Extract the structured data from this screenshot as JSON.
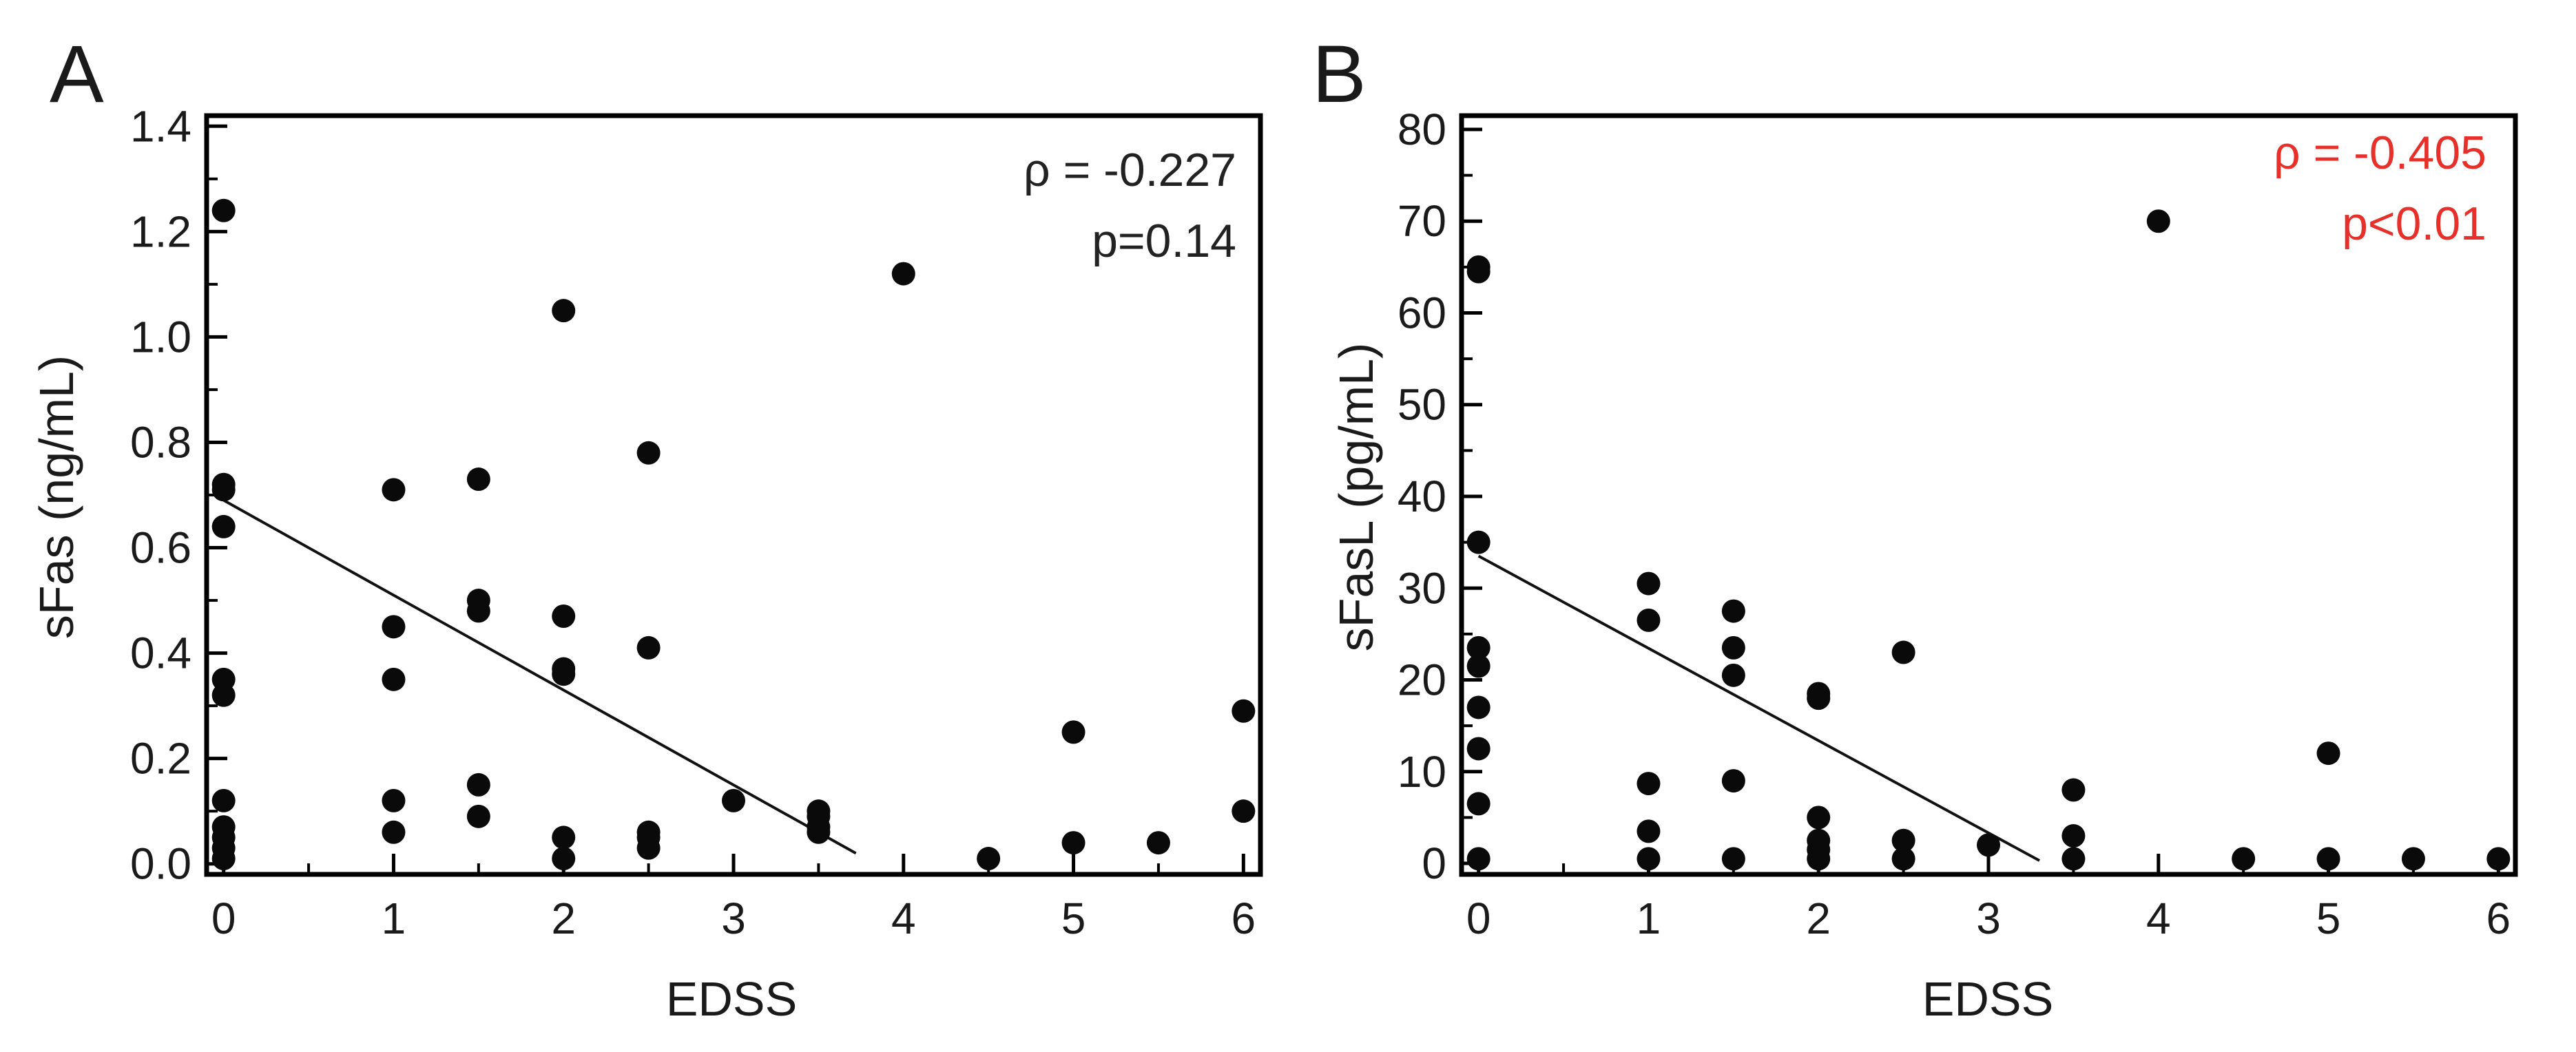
{
  "chart_data": [
    {
      "type": "scatter",
      "panel": "A",
      "xlabel": "EDSS",
      "ylabel": "sFas (ng/mL)",
      "xlim": [
        -0.1,
        6.1
      ],
      "ylim": [
        -0.02,
        1.42
      ],
      "xticks": [
        "0",
        "1",
        "2",
        "3",
        "4",
        "5",
        "6"
      ],
      "yticks": [
        "0.0",
        "0.2",
        "0.4",
        "0.6",
        "0.8",
        "1.0",
        "1.2",
        "1.4"
      ],
      "stats": {
        "rho": "ρ = -0.227",
        "p": "p=0.14",
        "color": "#222222"
      },
      "trendline": {
        "x": [
          0,
          3.72
        ],
        "y": [
          0.69,
          0.02
        ]
      },
      "points": [
        [
          0,
          1.24
        ],
        [
          0,
          0.72
        ],
        [
          0,
          0.71
        ],
        [
          0,
          0.64
        ],
        [
          0,
          0.35
        ],
        [
          0,
          0.32
        ],
        [
          0,
          0.12
        ],
        [
          0,
          0.07
        ],
        [
          0,
          0.05
        ],
        [
          0,
          0.03
        ],
        [
          0,
          0.01
        ],
        [
          1,
          0.71
        ],
        [
          1,
          0.45
        ],
        [
          1,
          0.35
        ],
        [
          1,
          0.12
        ],
        [
          1,
          0.06
        ],
        [
          1.5,
          0.73
        ],
        [
          1.5,
          0.5
        ],
        [
          1.5,
          0.48
        ],
        [
          1.5,
          0.15
        ],
        [
          1.5,
          0.09
        ],
        [
          2,
          1.05
        ],
        [
          2,
          0.47
        ],
        [
          2,
          0.37
        ],
        [
          2,
          0.36
        ],
        [
          2,
          0.05
        ],
        [
          2,
          0.01
        ],
        [
          2.5,
          0.78
        ],
        [
          2.5,
          0.41
        ],
        [
          2.5,
          0.06
        ],
        [
          2.5,
          0.05
        ],
        [
          2.5,
          0.03
        ],
        [
          3,
          0.12
        ],
        [
          3.5,
          0.1
        ],
        [
          3.5,
          0.09
        ],
        [
          3.5,
          0.07
        ],
        [
          3.5,
          0.06
        ],
        [
          4,
          1.12
        ],
        [
          4.5,
          0.01
        ],
        [
          5,
          0.25
        ],
        [
          5,
          0.04
        ],
        [
          5.5,
          0.04
        ],
        [
          6,
          0.29
        ],
        [
          6,
          0.1
        ]
      ]
    },
    {
      "type": "scatter",
      "panel": "B",
      "xlabel": "EDSS",
      "ylabel": "sFasL (pg/mL)",
      "xlim": [
        -0.1,
        6.1
      ],
      "ylim": [
        -1.2,
        81.5
      ],
      "xticks": [
        "0",
        "1",
        "2",
        "3",
        "4",
        "5",
        "6"
      ],
      "yticks": [
        "0",
        "10",
        "20",
        "30",
        "40",
        "50",
        "60",
        "70",
        "80"
      ],
      "stats": {
        "rho": "ρ = -0.405",
        "p": "p<0.01",
        "color": "#e8302a"
      },
      "trendline": {
        "x": [
          0,
          3.3
        ],
        "y": [
          33.5,
          0.3
        ]
      },
      "points": [
        [
          0,
          65
        ],
        [
          0,
          64.5
        ],
        [
          0,
          35
        ],
        [
          0,
          23.5
        ],
        [
          0,
          21.5
        ],
        [
          0,
          17
        ],
        [
          0,
          12.5
        ],
        [
          0,
          6.5
        ],
        [
          0,
          0.5
        ],
        [
          1,
          30.5
        ],
        [
          1,
          26.5
        ],
        [
          1,
          8.7
        ],
        [
          1,
          3.5
        ],
        [
          1,
          0.5
        ],
        [
          1.5,
          27.5
        ],
        [
          1.5,
          23.5
        ],
        [
          1.5,
          20.5
        ],
        [
          1.5,
          9
        ],
        [
          1.5,
          0.5
        ],
        [
          2,
          18.5
        ],
        [
          2,
          18
        ],
        [
          2,
          5
        ],
        [
          2,
          2.5
        ],
        [
          2,
          1.5
        ],
        [
          2,
          0.5
        ],
        [
          2.5,
          23
        ],
        [
          2.5,
          2.5
        ],
        [
          2.5,
          0.5
        ],
        [
          3,
          2
        ],
        [
          3.5,
          8
        ],
        [
          3.5,
          3
        ],
        [
          3.5,
          0.5
        ],
        [
          4,
          70
        ],
        [
          4.5,
          0.5
        ],
        [
          5,
          12
        ],
        [
          5,
          0.5
        ],
        [
          5.5,
          0.5
        ],
        [
          6,
          0.5
        ]
      ]
    }
  ]
}
